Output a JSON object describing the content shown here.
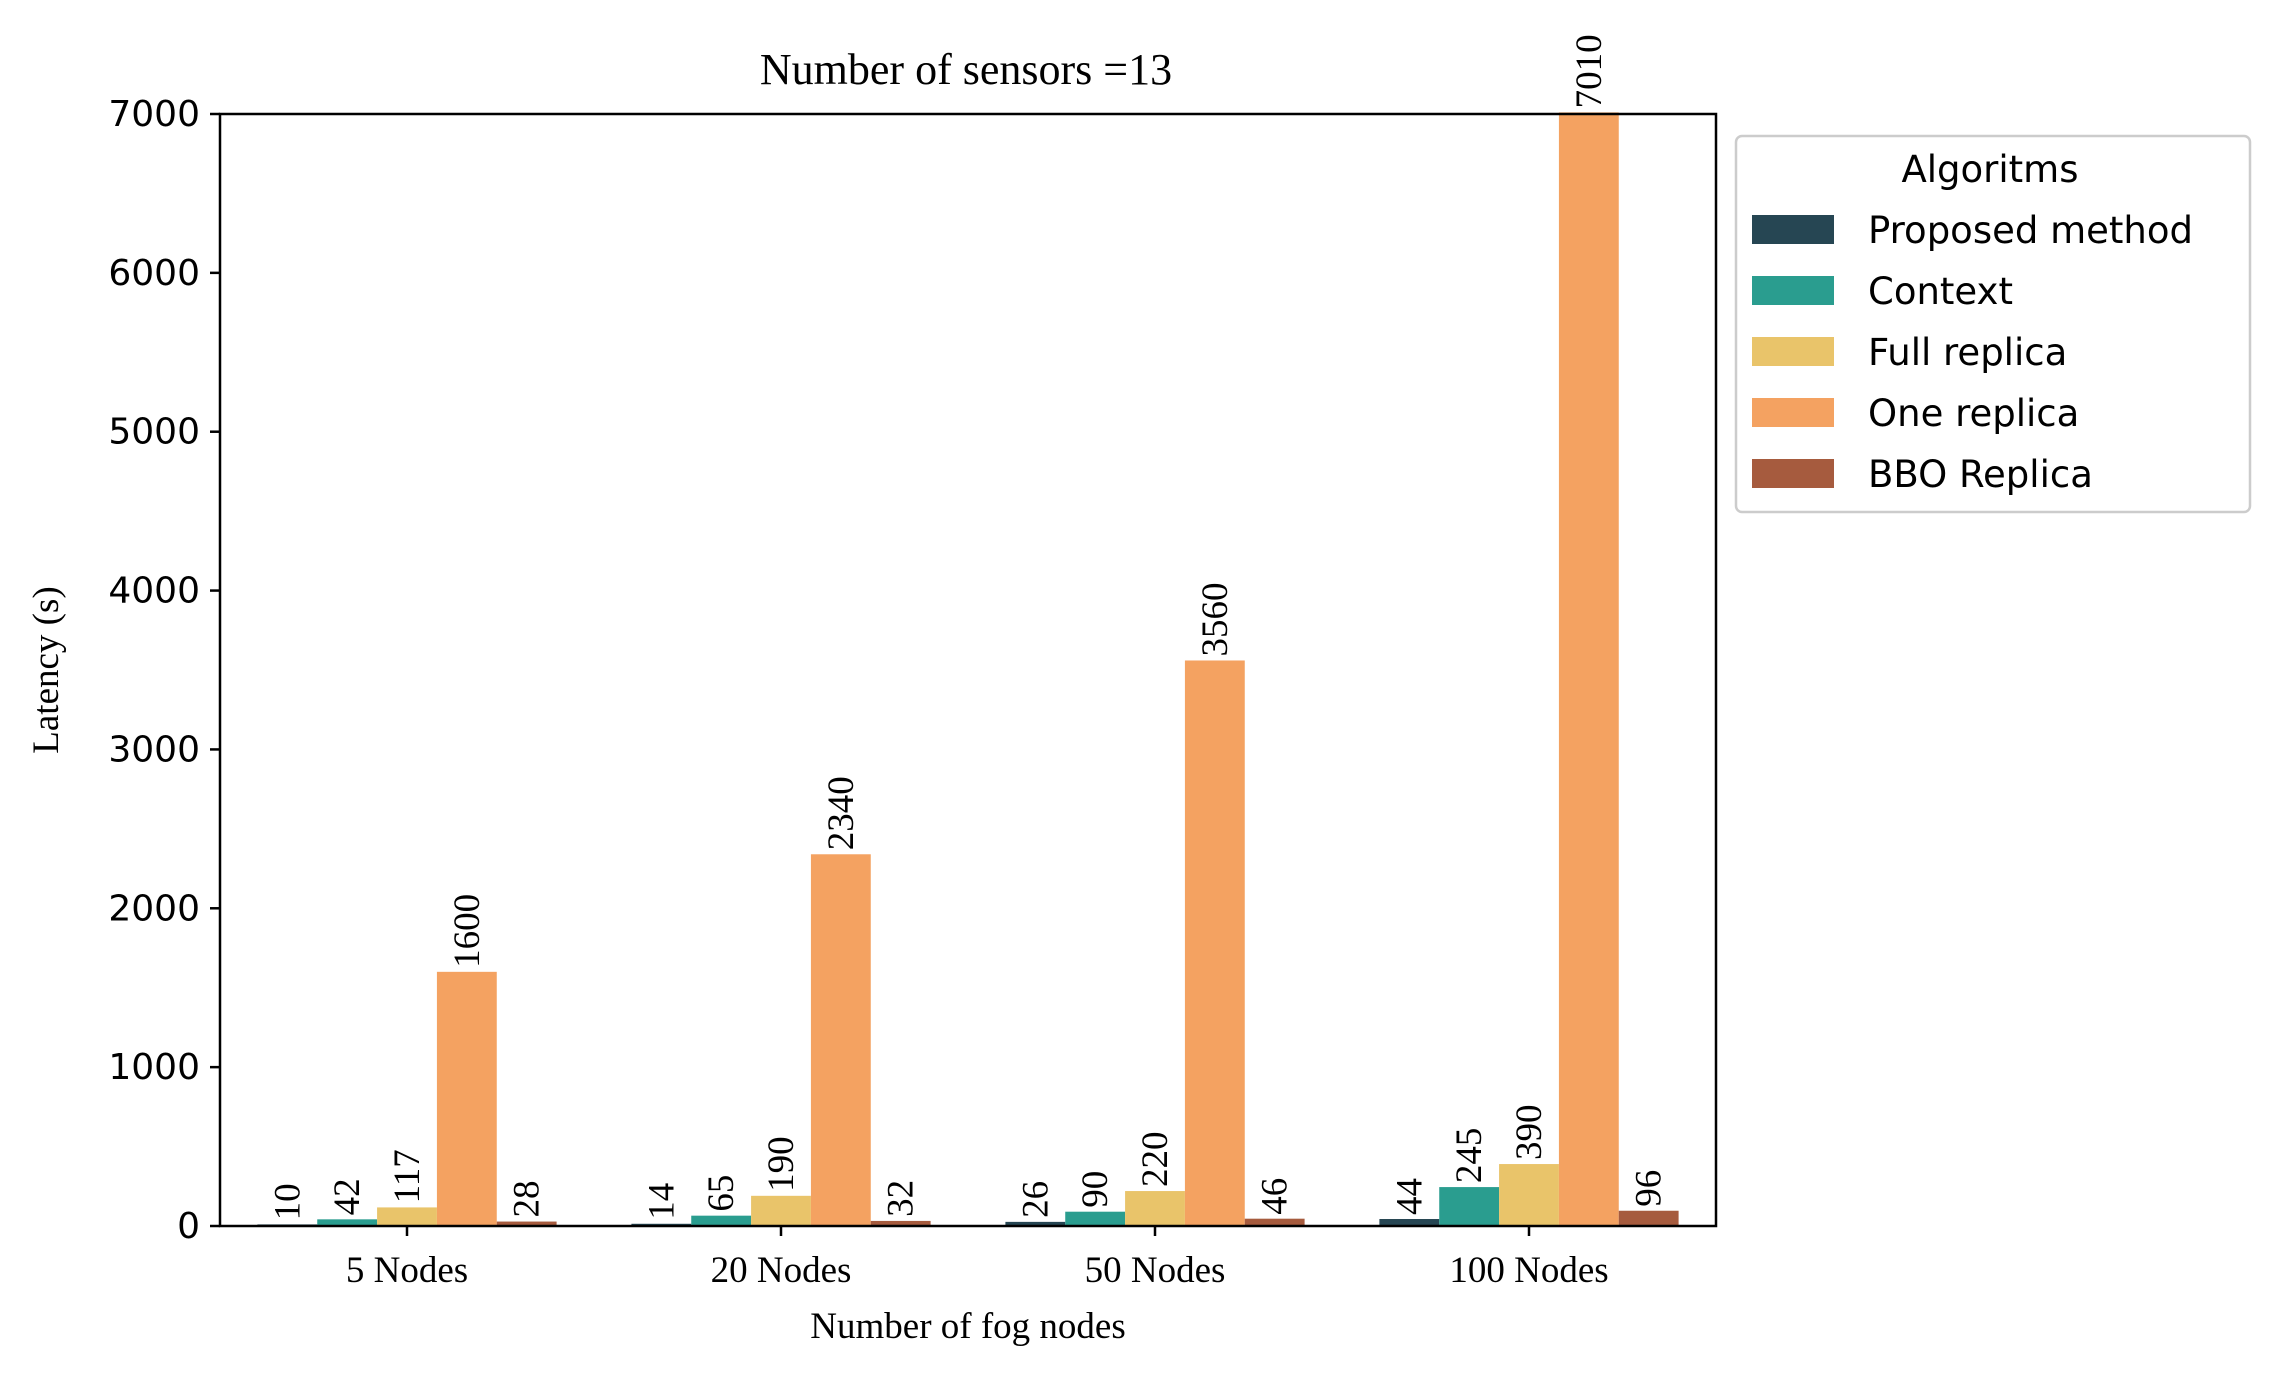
{
  "chart_data": {
    "type": "bar",
    "title": "Number of sensors =13",
    "xlabel": "Number of fog nodes",
    "ylabel": "Latency (s)",
    "ylim": [
      0,
      7000
    ],
    "yticks": [
      0,
      1000,
      2000,
      3000,
      4000,
      5000,
      6000,
      7000
    ],
    "categories": [
      "5 Nodes",
      "20 Nodes",
      "50 Nodes",
      "100 Nodes"
    ],
    "legend": {
      "title": "Algoritms",
      "placement": "outside-right"
    },
    "grid": false,
    "series": [
      {
        "name": "Proposed method",
        "color": "#264653",
        "values": [
          10,
          14,
          26,
          44
        ]
      },
      {
        "name": "Context",
        "color": "#2a9d8f",
        "values": [
          42,
          65,
          90,
          245
        ]
      },
      {
        "name": "Full replica",
        "color": "#e9c46a",
        "values": [
          117,
          190,
          220,
          390
        ]
      },
      {
        "name": "One replica",
        "color": "#f4a261",
        "values": [
          1600,
          2340,
          3560,
          7010
        ]
      },
      {
        "name": "BBO Replica",
        "color": "#a65b3e",
        "values": [
          28,
          32,
          46,
          96
        ]
      }
    ]
  }
}
